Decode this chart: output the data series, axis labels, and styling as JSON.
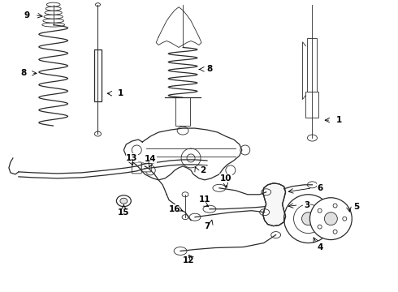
{
  "bg_color": "#ffffff",
  "line_color": "#2a2a2a",
  "label_color": "#000000",
  "figsize": [
    4.9,
    3.6
  ],
  "dpi": 100,
  "lw_thin": 0.6,
  "lw_med": 0.9,
  "lw_thick": 1.2,
  "label_fs": 7.5
}
